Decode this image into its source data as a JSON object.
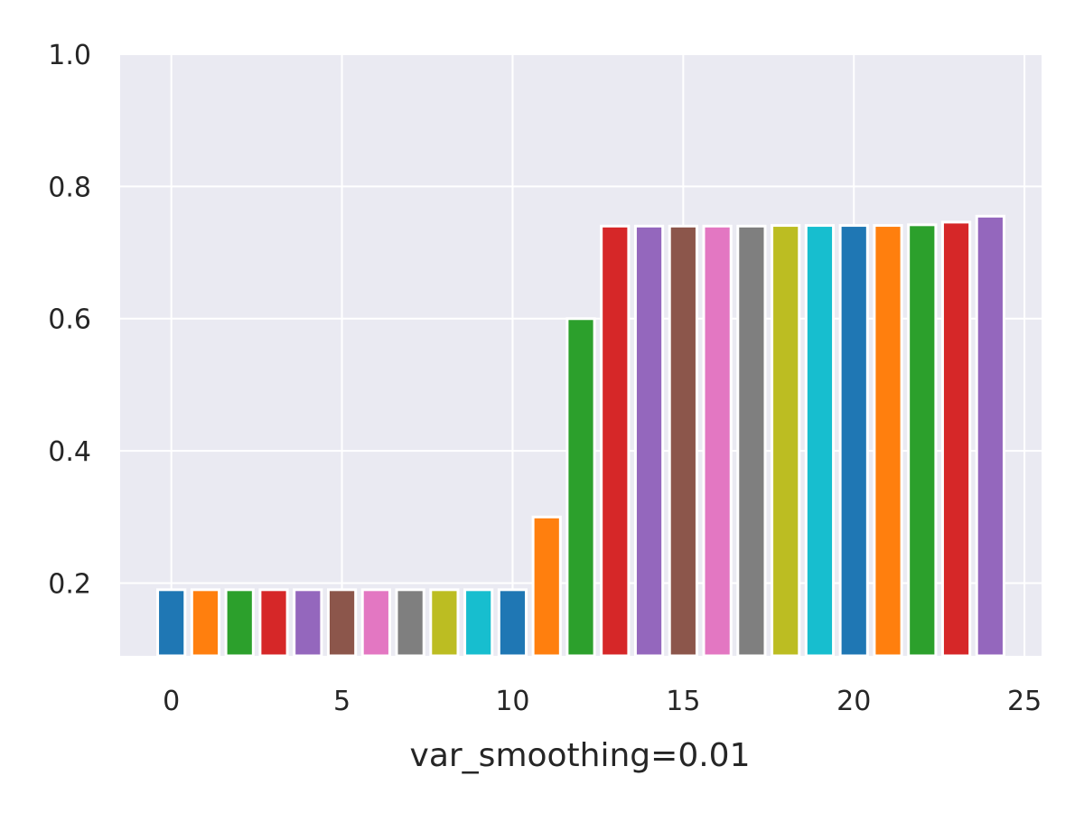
{
  "chart_data": {
    "type": "bar",
    "title": "",
    "xlabel": "var_smoothing=0.01",
    "ylabel": "",
    "x": [
      0,
      1,
      2,
      3,
      4,
      5,
      6,
      7,
      8,
      9,
      10,
      11,
      12,
      13,
      14,
      15,
      16,
      17,
      18,
      19,
      20,
      21,
      22,
      23,
      24
    ],
    "values": [
      0.19,
      0.19,
      0.19,
      0.19,
      0.19,
      0.19,
      0.19,
      0.19,
      0.19,
      0.19,
      0.19,
      0.3,
      0.6,
      0.74,
      0.74,
      0.74,
      0.74,
      0.74,
      0.741,
      0.741,
      0.741,
      0.741,
      0.742,
      0.746,
      0.755
    ],
    "bar_colors": [
      "#1f77b4",
      "#ff7f0e",
      "#2ca02c",
      "#d62728",
      "#9467bd",
      "#8c564b",
      "#e377c2",
      "#7f7f7f",
      "#bcbd22",
      "#17becf",
      "#1f77b4",
      "#ff7f0e",
      "#2ca02c",
      "#d62728",
      "#9467bd",
      "#8c564b",
      "#e377c2",
      "#7f7f7f",
      "#bcbd22",
      "#17becf",
      "#1f77b4",
      "#ff7f0e",
      "#2ca02c",
      "#d62728",
      "#9467bd"
    ],
    "xlim": [
      -1.5,
      25.5
    ],
    "ylim": [
      0.09,
      1.0
    ],
    "xticks": [
      0,
      5,
      10,
      15,
      20,
      25
    ],
    "xtick_labels": [
      "0",
      "5",
      "10",
      "15",
      "20",
      "25"
    ],
    "yticks": [
      0.2,
      0.4,
      0.6,
      0.8,
      1.0
    ],
    "ytick_labels": [
      "0.2",
      "0.4",
      "0.6",
      "0.8",
      "1.0"
    ],
    "grid": true,
    "legend": "none",
    "background_color": "#eaeaf2",
    "grid_color": "#ffffff"
  }
}
